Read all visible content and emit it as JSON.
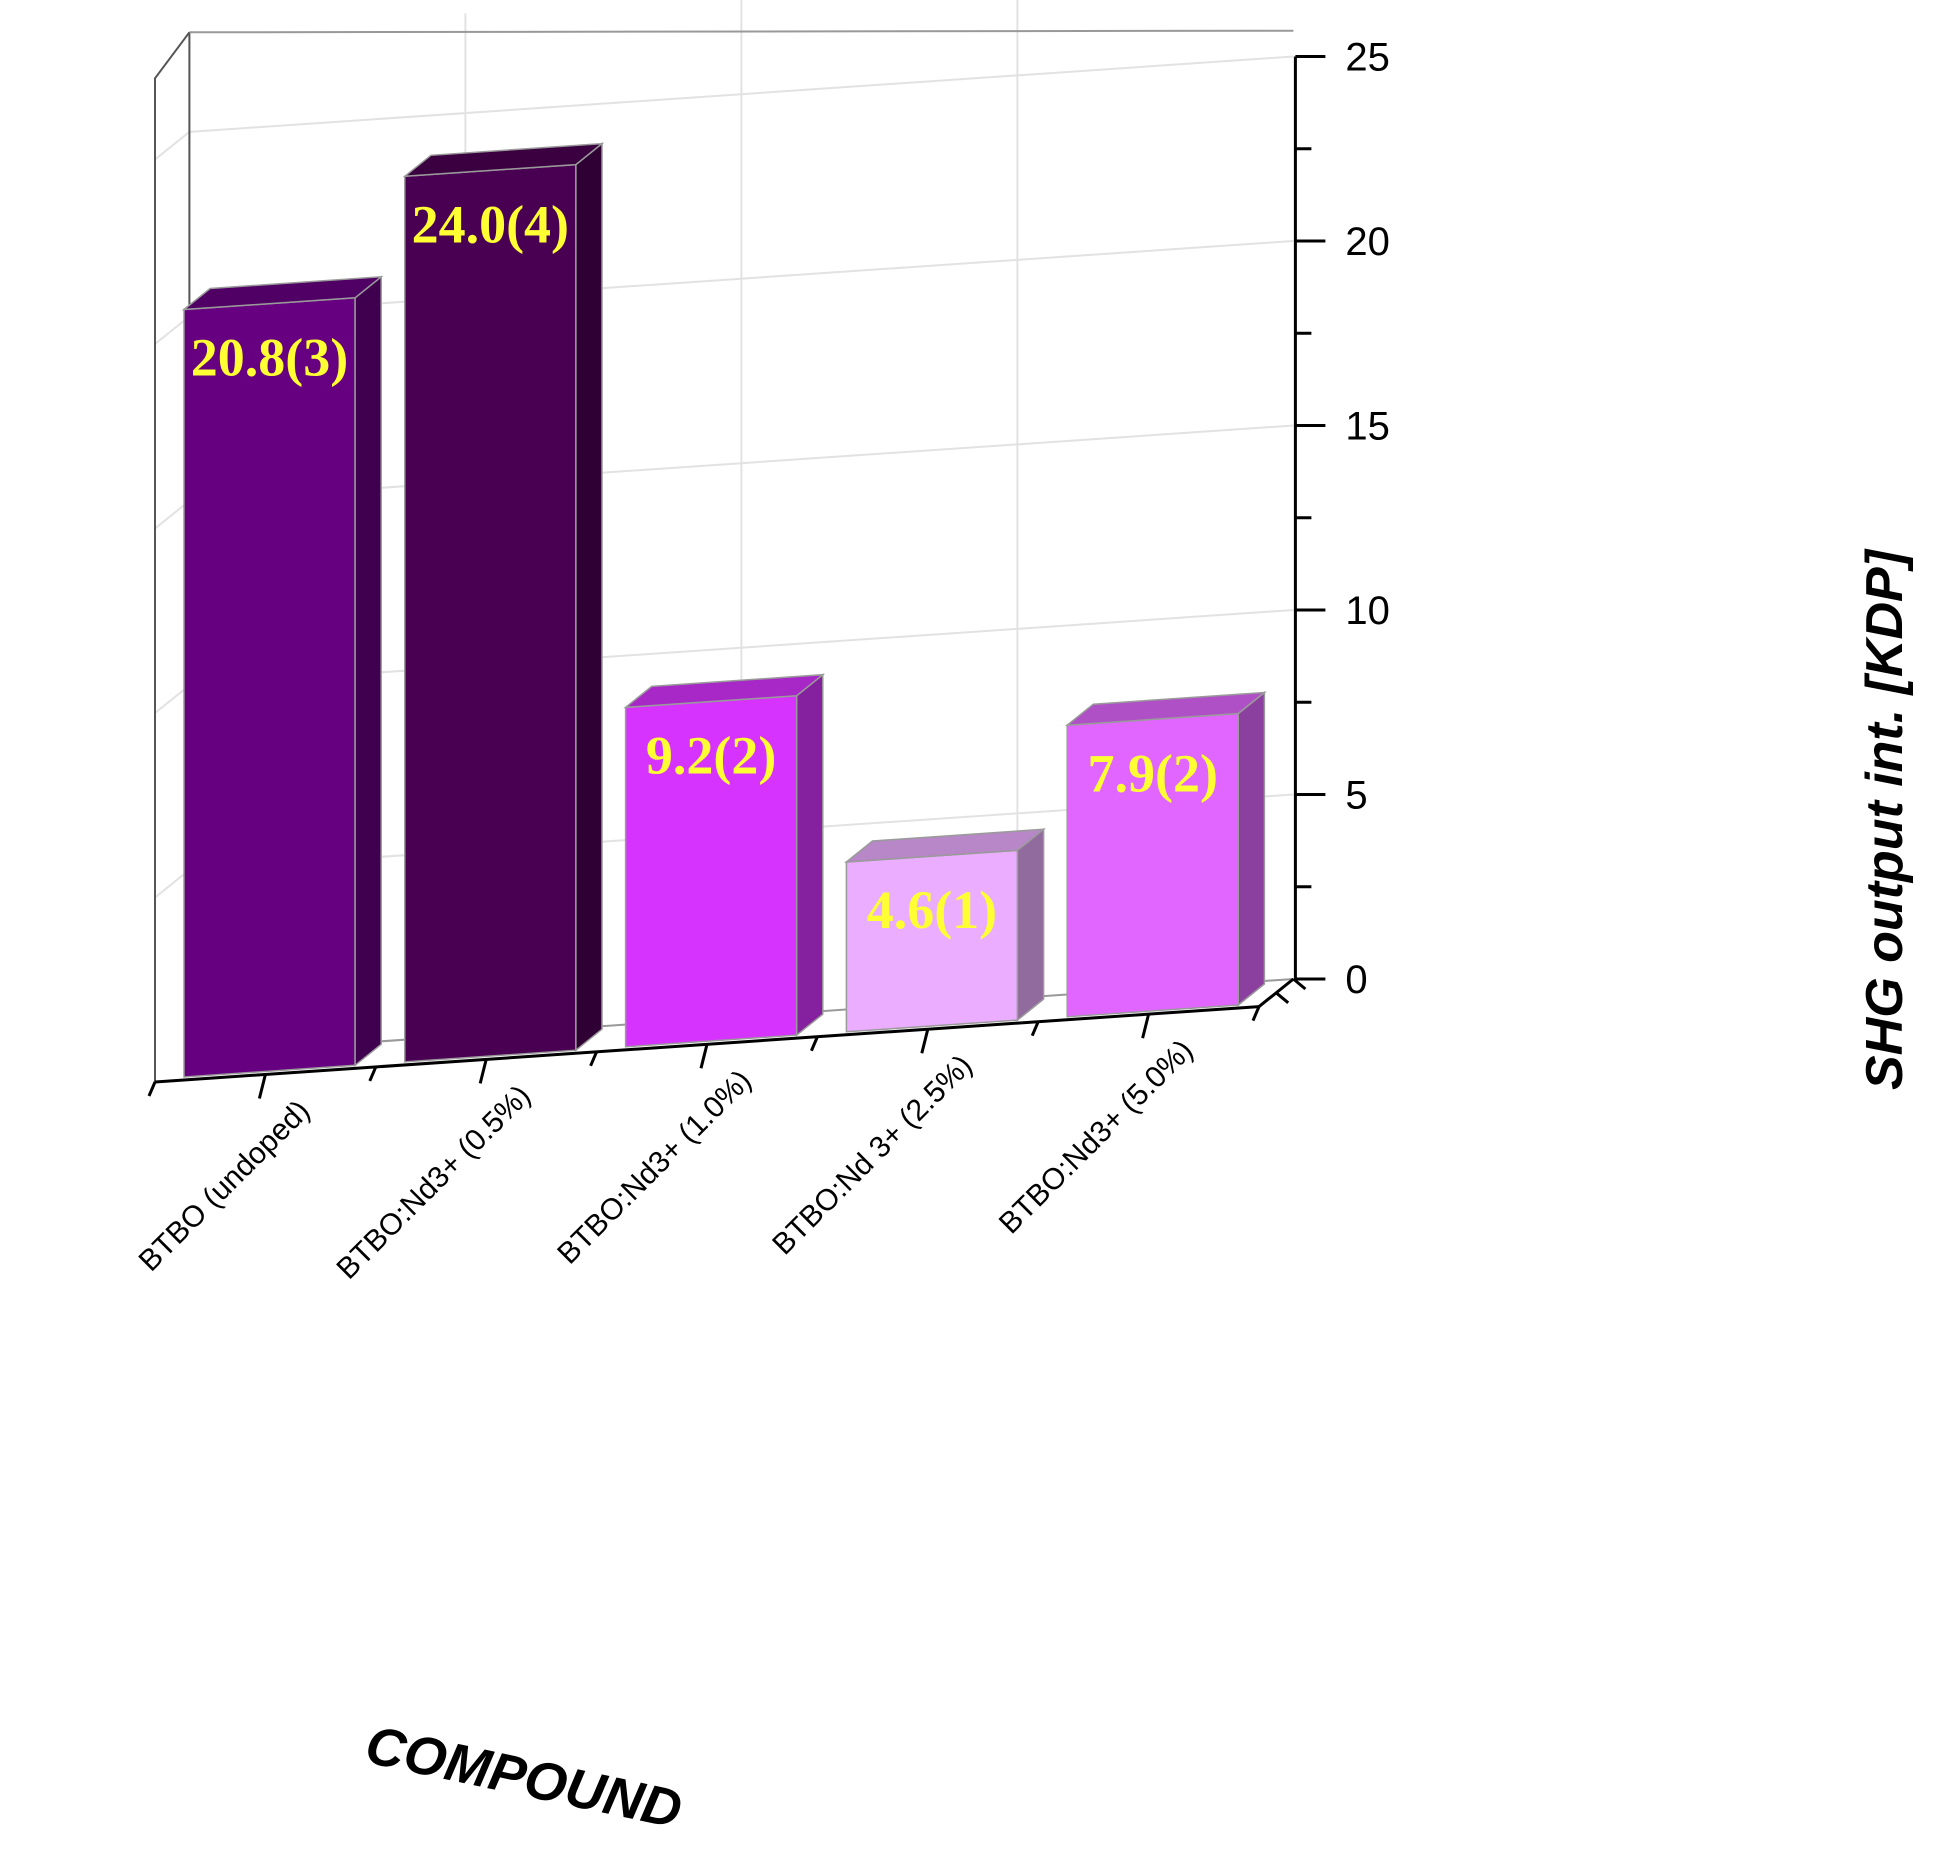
{
  "chart_data": {
    "type": "bar",
    "categories": [
      "BTBO (undoped)",
      "BTBO:Nd3+ (0.5%)",
      "BTBO:Nd3+ (1.0%)",
      "BTBO:Nd 3+ (2.5%)",
      "BTBO:Nd3+ (5.0%)"
    ],
    "values": [
      20.8,
      24.0,
      9.2,
      4.6,
      7.9
    ],
    "data_labels": [
      "20.8(3)",
      "24.0(4)",
      "9.2(2)",
      "4.6(1)",
      "7.9(2)"
    ],
    "colors": [
      "#660080",
      "#4a0052",
      "#d633ff",
      "#ebadff",
      "#e066ff"
    ],
    "xlabel": "COMPOUND",
    "ylabel": "SHG output int. [KDP]",
    "ylim": [
      0,
      25
    ],
    "yticks": [
      "0",
      "5",
      "10",
      "15",
      "20",
      "25"
    ],
    "grid": true,
    "style": "3d-bar"
  }
}
